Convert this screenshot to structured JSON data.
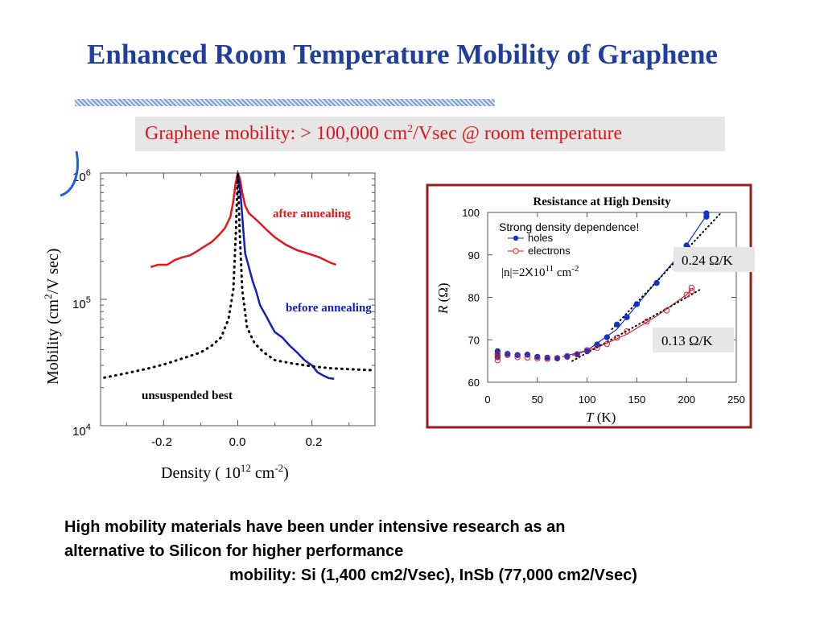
{
  "title": "Enhanced Room Temperature Mobility of Graphene",
  "banner": {
    "prefix": "Graphene mobility: > 100,000 cm",
    "sup": "2",
    "suffix": "/Vsec @ room temperature"
  },
  "chart_data": [
    {
      "type": "line",
      "title": "",
      "xlabel": "Density ( 10^12 cm^-2)",
      "ylabel": "Mobility (cm^2/V sec)",
      "yscale": "log",
      "xlim": [
        -0.37,
        0.37
      ],
      "ylim": [
        10000,
        1000000
      ],
      "x_ticks": [
        "-0.2",
        "0.0",
        "0.2"
      ],
      "y_ticks": [
        {
          "base": "10",
          "exp": "4"
        },
        {
          "base": "10",
          "exp": "5"
        },
        {
          "base": "10",
          "exp": "6"
        }
      ],
      "annotations": [
        "after annealing",
        "before annealing",
        "unsuspended best"
      ],
      "series": [
        {
          "name": "after annealing",
          "color": "#e8141a",
          "style": "solid",
          "points": [
            [
              -0.235,
              180000
            ],
            [
              -0.215,
              188000
            ],
            [
              -0.19,
              188000
            ],
            [
              -0.17,
              205000
            ],
            [
              -0.15,
              215000
            ],
            [
              -0.13,
              222000
            ],
            [
              -0.11,
              240000
            ],
            [
              -0.09,
              262000
            ],
            [
              -0.07,
              285000
            ],
            [
              -0.05,
              325000
            ],
            [
              -0.035,
              365000
            ],
            [
              -0.02,
              450000
            ],
            [
              -0.012,
              600000
            ],
            [
              -0.006,
              820000
            ],
            [
              0.0,
              1000000
            ],
            [
              0.006,
              900000
            ],
            [
              0.012,
              700000
            ],
            [
              0.02,
              550000
            ],
            [
              0.03,
              480000
            ],
            [
              0.045,
              440000
            ],
            [
              0.06,
              400000
            ],
            [
              0.08,
              350000
            ],
            [
              0.1,
              310000
            ],
            [
              0.13,
              270000
            ],
            [
              0.16,
              245000
            ],
            [
              0.19,
              230000
            ],
            [
              0.22,
              215000
            ],
            [
              0.25,
              195000
            ],
            [
              0.265,
              188000
            ]
          ]
        },
        {
          "name": "before annealing",
          "color": "#1020b8",
          "style": "solid",
          "points": [
            [
              0.0,
              1000000
            ],
            [
              0.005,
              800000
            ],
            [
              0.01,
              550000
            ],
            [
              0.015,
              350000
            ],
            [
              0.02,
              230000
            ],
            [
              0.03,
              180000
            ],
            [
              0.04,
              140000
            ],
            [
              0.05,
              115000
            ],
            [
              0.06,
              90000
            ],
            [
              0.075,
              75000
            ],
            [
              0.09,
              62000
            ],
            [
              0.1,
              55000
            ],
            [
              0.12,
              50000
            ],
            [
              0.14,
              43000
            ],
            [
              0.16,
              38000
            ],
            [
              0.18,
              33000
            ],
            [
              0.2,
              30000
            ],
            [
              0.215,
              26500
            ],
            [
              0.23,
              25000
            ],
            [
              0.245,
              23800
            ],
            [
              0.26,
              23500
            ]
          ]
        },
        {
          "name": "unsuspended best",
          "color": "#000000",
          "style": "dotted",
          "points": [
            [
              -0.36,
              24000
            ],
            [
              -0.3,
              26000
            ],
            [
              -0.25,
              28000
            ],
            [
              -0.2,
              30500
            ],
            [
              -0.15,
              34000
            ],
            [
              -0.1,
              38000
            ],
            [
              -0.07,
              43000
            ],
            [
              -0.045,
              50000
            ],
            [
              -0.025,
              70000
            ],
            [
              -0.012,
              120000
            ],
            [
              -0.005,
              350000
            ],
            [
              0.0,
              1000000
            ],
            [
              0.005,
              350000
            ],
            [
              0.012,
              120000
            ],
            [
              0.025,
              60000
            ],
            [
              0.045,
              45000
            ],
            [
              0.07,
              38000
            ],
            [
              0.1,
              33000
            ],
            [
              0.15,
              31000
            ],
            [
              0.2,
              29500
            ],
            [
              0.25,
              28500
            ],
            [
              0.3,
              28000
            ],
            [
              0.36,
              27500
            ]
          ]
        }
      ]
    },
    {
      "type": "scatter",
      "title": "Resistance at High Density",
      "xlabel": "T (K)",
      "ylabel": "R (Ω)",
      "xlim": [
        0,
        250
      ],
      "ylim": [
        60,
        100
      ],
      "x_ticks": [
        "0",
        "50",
        "100",
        "150",
        "200",
        "250"
      ],
      "y_ticks": [
        "60",
        "70",
        "80",
        "90",
        "100"
      ],
      "inner_text": "Strong density dependence!",
      "density_label": {
        "pre": "|n|=2",
        "x": "X",
        "base": "10",
        "exp": "11",
        "unit": " cm",
        "unit_exp": "-2"
      },
      "slope_labels": [
        "0.24 Ω/K",
        "0.13 Ω/K"
      ],
      "series": [
        {
          "name": "holes",
          "color": "#1232c8",
          "marker": "filled-circle",
          "points": [
            [
              10,
              66.5
            ],
            [
              10,
              67.3
            ],
            [
              10,
              65.9
            ],
            [
              20,
              66.7
            ],
            [
              30,
              66.4
            ],
            [
              40,
              66.5
            ],
            [
              50,
              66.0
            ],
            [
              60,
              65.8
            ],
            [
              70,
              65.7
            ],
            [
              80,
              66.0
            ],
            [
              90,
              66.6
            ],
            [
              100,
              67.3
            ],
            [
              110,
              68.9
            ],
            [
              120,
              70.6
            ],
            [
              130,
              73.6
            ],
            [
              140,
              75.3
            ],
            [
              150,
              78.4
            ],
            [
              170,
              83.4
            ],
            [
              200,
              92.2
            ],
            [
              220,
              99.0
            ],
            [
              220,
              99.8
            ]
          ]
        },
        {
          "name": "electrons",
          "color": "#d6202a",
          "marker": "open-circle",
          "points": [
            [
              10,
              65.2
            ],
            [
              10,
              66.0
            ],
            [
              10,
              66.6
            ],
            [
              20,
              66.4
            ],
            [
              30,
              65.9
            ],
            [
              40,
              65.8
            ],
            [
              50,
              65.6
            ],
            [
              60,
              65.5
            ],
            [
              70,
              65.6
            ],
            [
              80,
              66.2
            ],
            [
              90,
              66.6
            ],
            [
              100,
              67.6
            ],
            [
              110,
              68.1
            ],
            [
              120,
              69.0
            ],
            [
              130,
              70.5
            ],
            [
              140,
              72.0
            ],
            [
              160,
              74.3
            ],
            [
              180,
              76.9
            ],
            [
              200,
              80.6
            ],
            [
              205,
              82.3
            ],
            [
              205,
              81.5
            ]
          ]
        }
      ],
      "fit_lines": [
        {
          "name": "holes-fit",
          "color": "#1232c8",
          "style": "solid",
          "points": [
            [
              75,
              66.0
            ],
            [
              100,
              67.5
            ],
            [
              130,
              72.5
            ],
            [
              160,
              81.0
            ],
            [
              195,
              90.6
            ],
            [
              222,
              100.0
            ]
          ]
        },
        {
          "name": "electrons-fit",
          "color": "#d6202a",
          "style": "solid",
          "points": [
            [
              85,
              66.3
            ],
            [
              110,
              68.2
            ],
            [
              140,
              71.3
            ],
            [
              170,
              75.6
            ],
            [
              200,
              80.6
            ],
            [
              205,
              81.8
            ]
          ]
        },
        {
          "name": "holes-extrap",
          "color": "#000000",
          "style": "dotted",
          "points": [
            [
              125,
              72.5
            ],
            [
              155,
              80.0
            ],
            [
              185,
              87.5
            ],
            [
              215,
              95.0
            ],
            [
              235,
              100.0
            ]
          ]
        },
        {
          "name": "electrons-extrap",
          "color": "#000000",
          "style": "dotted",
          "points": [
            [
              85,
              65.0
            ],
            [
              120,
              69.5
            ],
            [
              160,
              74.7
            ],
            [
              200,
              80.0
            ],
            [
              215,
              82.0
            ]
          ]
        }
      ]
    }
  ],
  "body_text": [
    "High mobility materials have been under intensive research as an",
    "alternative to Silicon for higher performance",
    "mobility: Si (1,400 cm2/Vsec), InSb (77,000 cm2/Vsec)"
  ]
}
